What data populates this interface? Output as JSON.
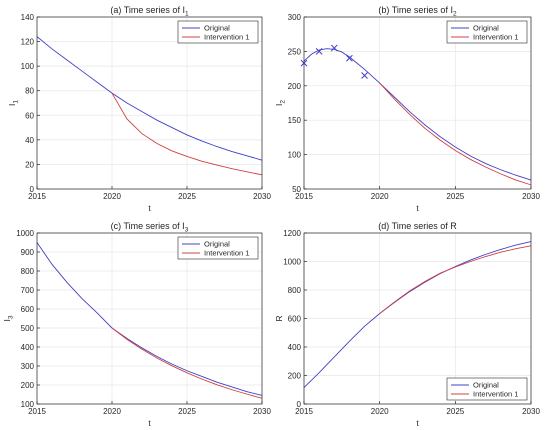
{
  "chart_data": [
    {
      "id": "p1",
      "type": "line",
      "title_main": "(a) Time series of I",
      "title_sub": "1",
      "xlabel": "t",
      "ylabel_main": "I",
      "ylabel_sub": "1",
      "xlim": [
        2015,
        2030
      ],
      "ylim": [
        0,
        140
      ],
      "xticks": [
        2015,
        2020,
        2025,
        2030
      ],
      "yticks": [
        0,
        20,
        40,
        60,
        80,
        100,
        120,
        140
      ],
      "grid": true,
      "legend": "top-right",
      "x": [
        2015,
        2016,
        2017,
        2018,
        2019,
        2020,
        2021,
        2022,
        2023,
        2024,
        2025,
        2026,
        2027,
        2028,
        2029,
        2030
      ],
      "series": [
        {
          "name": "Original",
          "color": "#4040c8",
          "x": [
            2015,
            2016,
            2017,
            2018,
            2019,
            2020,
            2021,
            2022,
            2023,
            2024,
            2025,
            2026,
            2027,
            2028,
            2029,
            2030
          ],
          "values": [
            124,
            114,
            105,
            96,
            87,
            78,
            70,
            63,
            56,
            50,
            44,
            39,
            34.5,
            30.5,
            27,
            23.5
          ]
        },
        {
          "name": "Intervention 1",
          "color": "#d04040",
          "x": [
            2020,
            2021,
            2022,
            2023,
            2024,
            2025,
            2026,
            2027,
            2028,
            2029,
            2030
          ],
          "values": [
            78,
            57,
            45,
            37,
            31,
            26.5,
            22.5,
            19.5,
            16.5,
            14,
            11.5
          ]
        }
      ]
    },
    {
      "id": "p2",
      "type": "line",
      "title_main": "(b) Time series of I",
      "title_sub": "2",
      "xlabel": "t",
      "ylabel_main": "I",
      "ylabel_sub": "2",
      "xlim": [
        2015,
        2030
      ],
      "ylim": [
        50,
        300
      ],
      "xticks": [
        2015,
        2020,
        2025,
        2030
      ],
      "yticks": [
        50,
        100,
        150,
        200,
        250,
        300
      ],
      "grid": true,
      "legend": "top-right",
      "markers": {
        "marker": "x",
        "color": "#4040c8",
        "x": [
          2015,
          2016,
          2017,
          2018,
          2019
        ],
        "values": [
          233,
          250,
          255,
          240,
          215
        ]
      },
      "series": [
        {
          "name": "Original",
          "color": "#4040c8",
          "x": [
            2015,
            2015.5,
            2016,
            2016.5,
            2017,
            2017.5,
            2018,
            2018.5,
            2019,
            2019.5,
            2020,
            2021,
            2022,
            2023,
            2024,
            2025,
            2026,
            2027,
            2028,
            2029,
            2030
          ],
          "values": [
            236,
            246,
            252,
            254,
            253,
            249,
            242,
            233,
            224,
            214,
            204,
            183,
            162,
            143,
            126,
            111,
            98,
            87,
            78,
            70,
            63
          ]
        },
        {
          "name": "Intervention 1",
          "color": "#d04040",
          "x": [
            2020,
            2021,
            2022,
            2023,
            2024,
            2025,
            2026,
            2027,
            2028,
            2029,
            2030
          ],
          "values": [
            204,
            180,
            158,
            138,
            121,
            106,
            93,
            82,
            72,
            63,
            56
          ]
        }
      ]
    },
    {
      "id": "p3",
      "type": "line",
      "title_main": "(c) Time series of I",
      "title_sub": "3",
      "xlabel": "t",
      "ylabel_main": "I",
      "ylabel_sub": "3",
      "xlim": [
        2015,
        2030
      ],
      "ylim": [
        100,
        1000
      ],
      "xticks": [
        2015,
        2020,
        2025,
        2030
      ],
      "yticks": [
        100,
        200,
        300,
        400,
        500,
        600,
        700,
        800,
        900,
        1000
      ],
      "grid": true,
      "legend": "top-right",
      "series": [
        {
          "name": "Original",
          "color": "#4040c8",
          "x": [
            2015,
            2016,
            2017,
            2018,
            2019,
            2020,
            2021,
            2022,
            2023,
            2024,
            2025,
            2026,
            2027,
            2028,
            2029,
            2030
          ],
          "values": [
            950,
            835,
            740,
            655,
            580,
            500,
            445,
            395,
            350,
            310,
            275,
            245,
            215,
            190,
            165,
            145
          ]
        },
        {
          "name": "Intervention 1",
          "color": "#d04040",
          "x": [
            2020,
            2021,
            2022,
            2023,
            2024,
            2025,
            2026,
            2027,
            2028,
            2029,
            2030
          ],
          "values": [
            500,
            440,
            388,
            342,
            301,
            264,
            231,
            201,
            175,
            152,
            130
          ]
        }
      ]
    },
    {
      "id": "p4",
      "type": "line",
      "title_main": "(d) Time series of R",
      "title_sub": "",
      "xlabel": "t",
      "ylabel_main": "R",
      "ylabel_sub": "",
      "xlim": [
        2015,
        2030
      ],
      "ylim": [
        0,
        1200
      ],
      "xticks": [
        2015,
        2020,
        2025,
        2030
      ],
      "yticks": [
        0,
        200,
        400,
        600,
        800,
        1000,
        1200
      ],
      "grid": true,
      "legend": "bottom-right",
      "series": [
        {
          "name": "Original",
          "color": "#4040c8",
          "x": [
            2015,
            2016,
            2017,
            2018,
            2019,
            2020,
            2021,
            2022,
            2023,
            2024,
            2025,
            2026,
            2027,
            2028,
            2029,
            2030
          ],
          "values": [
            115,
            220,
            330,
            440,
            545,
            635,
            715,
            790,
            855,
            915,
            965,
            1010,
            1050,
            1085,
            1115,
            1140
          ]
        },
        {
          "name": "Intervention 1",
          "color": "#d04040",
          "x": [
            2020,
            2021,
            2022,
            2023,
            2024,
            2025,
            2026,
            2027,
            2028,
            2029,
            2030
          ],
          "values": [
            635,
            718,
            795,
            860,
            918,
            962,
            1000,
            1035,
            1065,
            1090,
            1110
          ]
        }
      ]
    }
  ]
}
